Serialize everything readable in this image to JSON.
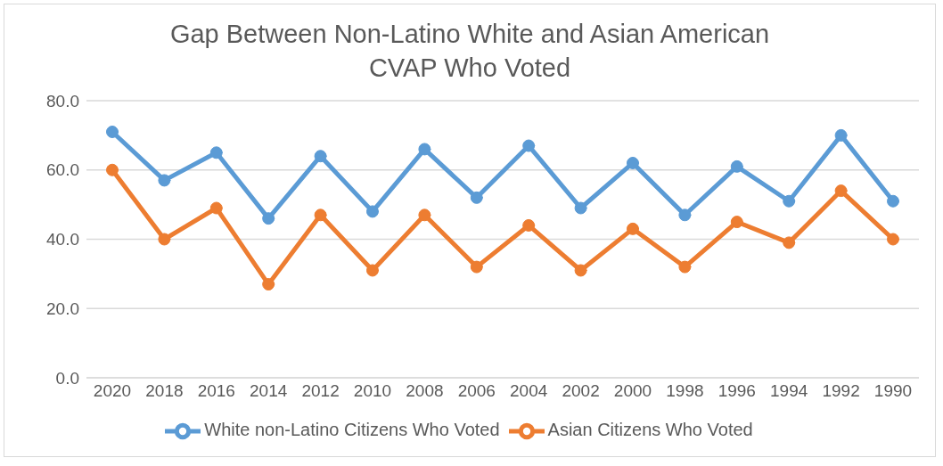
{
  "chart_data": {
    "type": "line",
    "title": "Gap Between Non-Latino White and Asian American CVAP Who Voted",
    "categories": [
      "2020",
      "2018",
      "2016",
      "2014",
      "2012",
      "2010",
      "2008",
      "2006",
      "2004",
      "2002",
      "2000",
      "1998",
      "1996",
      "1994",
      "1992",
      "1990"
    ],
    "series": [
      {
        "name": "White non-Latino Citizens Who Voted",
        "color": "#5b9bd5",
        "values": [
          71,
          57,
          65,
          46,
          64,
          48,
          66,
          52,
          67,
          49,
          62,
          47,
          61,
          51,
          70,
          51
        ]
      },
      {
        "name": "Asian Citizens Who Voted",
        "color": "#ed7d31",
        "values": [
          60,
          40,
          49,
          27,
          47,
          31,
          47,
          32,
          44,
          31,
          43,
          32,
          45,
          39,
          54,
          40
        ]
      }
    ],
    "ylim": [
      0,
      80
    ],
    "yticks": [
      {
        "value": 0,
        "label": "0.0"
      },
      {
        "value": 20,
        "label": "20.0"
      },
      {
        "value": 40,
        "label": "40.0"
      },
      {
        "value": 60,
        "label": "60.0"
      },
      {
        "value": 80,
        "label": "80.0"
      }
    ],
    "grid": "y",
    "legend": "bottom",
    "marker": "circle",
    "line_style": "solid"
  }
}
